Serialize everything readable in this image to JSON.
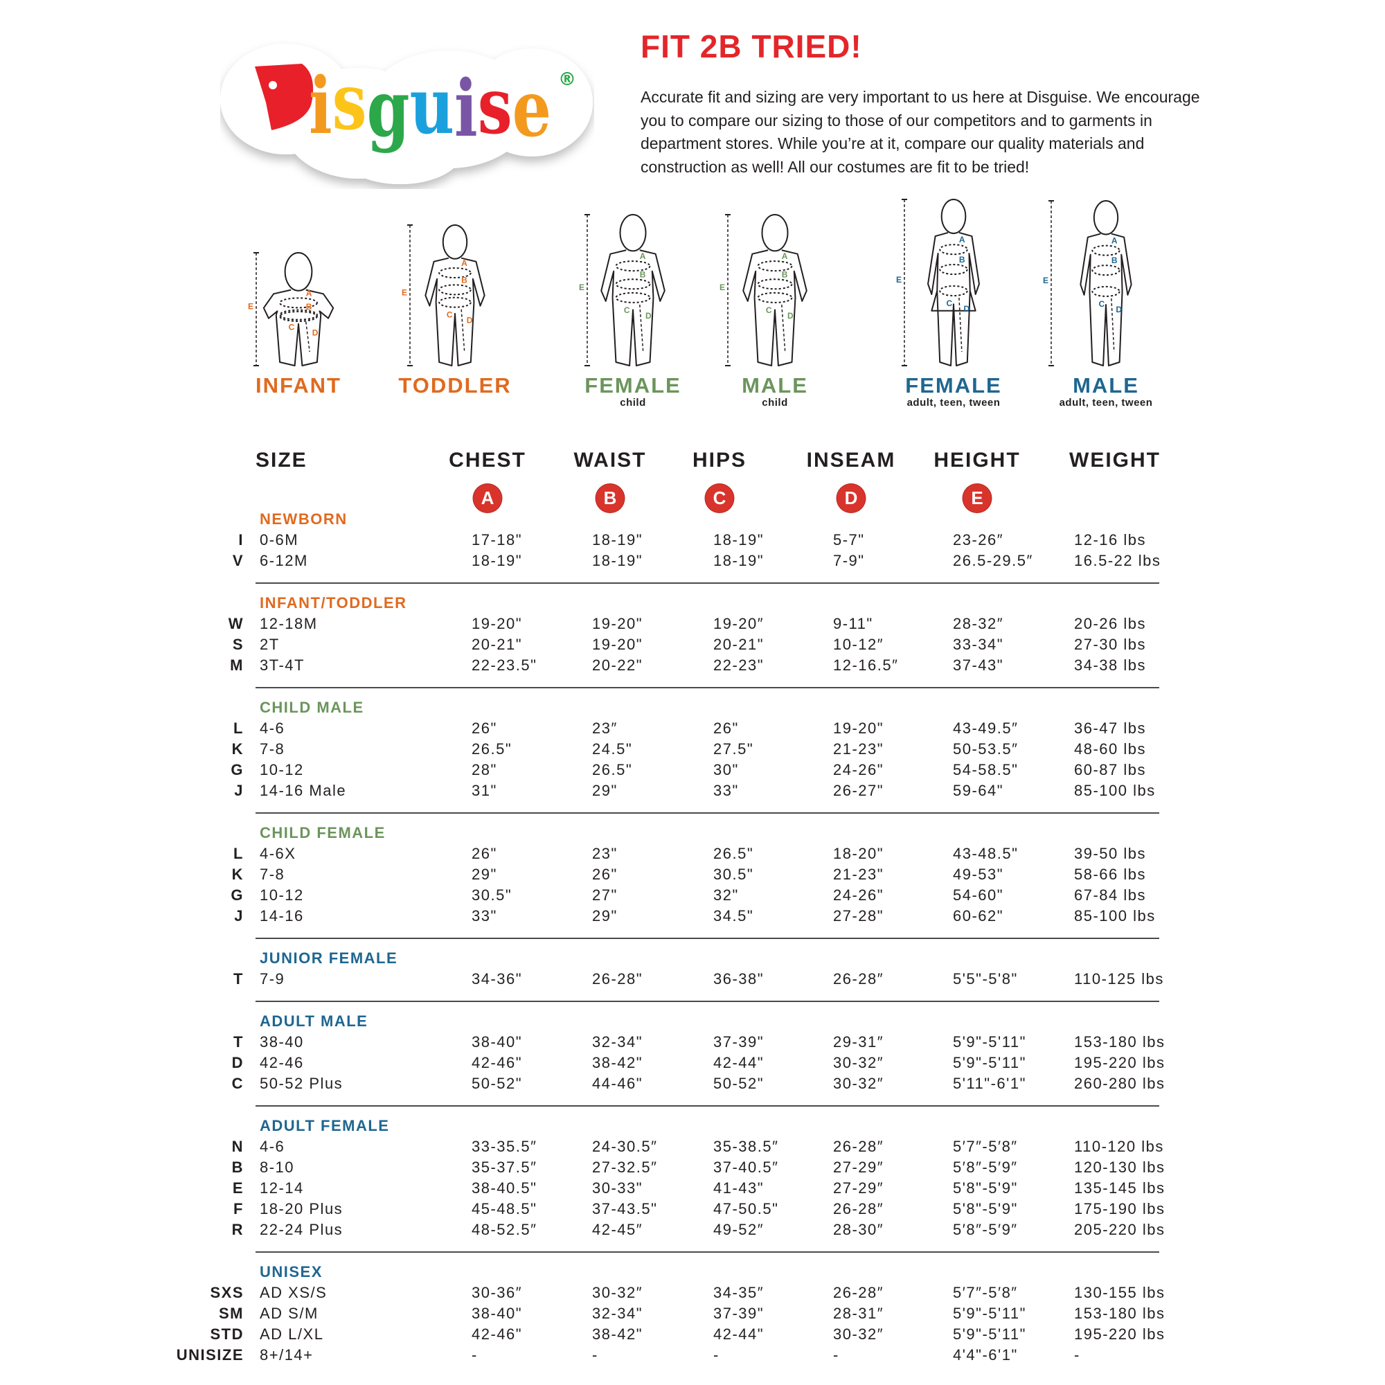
{
  "logo": {
    "text": "Disguise",
    "registered": "®",
    "letter_colors": [
      "#e8202a",
      "#f39a1e",
      "#fcc419",
      "#2ca84a",
      "#1aa0dc",
      "#7a55a5",
      "#e8202a",
      "#f39a1e"
    ]
  },
  "header": {
    "title": "FIT 2B TRIED!",
    "intro": "Accurate fit and sizing are very important to us here at Disguise. We encourage you to compare our sizing to those of our competitors and to garments in department stores. While you’re at it, compare our quality materials and construction as well! All our costumes are fit to be tried!"
  },
  "colors": {
    "orange": "#e06a1f",
    "green": "#6b955c",
    "blue": "#1f6691",
    "red": "#d8342c",
    "title_red": "#e3262a"
  },
  "figures": [
    {
      "label": "INFANT",
      "sub": "",
      "color": "#e06a1f"
    },
    {
      "label": "TODDLER",
      "sub": "",
      "color": "#e06a1f"
    },
    {
      "label": "FEMALE",
      "sub": "child",
      "color": "#6b955c"
    },
    {
      "label": "MALE",
      "sub": "child",
      "color": "#6b955c"
    },
    {
      "label": "FEMALE",
      "sub": "adult, teen, tween",
      "color": "#1f6691"
    },
    {
      "label": "MALE",
      "sub": "adult, teen, tween",
      "color": "#1f6691"
    }
  ],
  "figure_markers": [
    "A",
    "B",
    "C",
    "D",
    "E"
  ],
  "columns": [
    {
      "label": "SIZE",
      "marker": ""
    },
    {
      "label": "CHEST",
      "marker": "A"
    },
    {
      "label": "WAIST",
      "marker": "B"
    },
    {
      "label": "HIPS",
      "marker": "C"
    },
    {
      "label": "INSEAM",
      "marker": "D"
    },
    {
      "label": "HEIGHT",
      "marker": "E"
    },
    {
      "label": "WEIGHT",
      "marker": ""
    }
  ],
  "sections": [
    {
      "title": "NEWBORN",
      "color": "#e06a1f",
      "rows": [
        [
          "I",
          "0-6M",
          "17-18\"",
          "18-19\"",
          "18-19\"",
          "5-7\"",
          "23-26″",
          "12-16 lbs"
        ],
        [
          "V",
          "6-12M",
          "18-19\"",
          "18-19\"",
          "18-19\"",
          "7-9\"",
          "26.5-29.5″",
          "16.5-22 lbs"
        ]
      ]
    },
    {
      "title": "INFANT/TODDLER",
      "color": "#e06a1f",
      "rows": [
        [
          "W",
          "12-18M",
          "19-20\"",
          "19-20\"",
          "19-20″",
          "9-11\"",
          "28-32″",
          "20-26 lbs"
        ],
        [
          "S",
          "2T",
          "20-21\"",
          "19-20\"",
          "20-21\"",
          "10-12″",
          "33-34\"",
          "27-30 lbs"
        ],
        [
          "M",
          "3T-4T",
          "22-23.5\"",
          "20-22\"",
          "22-23\"",
          "12-16.5″",
          "37-43\"",
          "34-38 lbs"
        ]
      ]
    },
    {
      "title": "CHILD MALE",
      "color": "#6b955c",
      "rows": [
        [
          "L",
          "4-6",
          "26\"",
          "23″",
          "26\"",
          "19-20\"",
          "43-49.5″",
          "36-47 lbs"
        ],
        [
          "K",
          "7-8",
          "26.5\"",
          "24.5\"",
          "27.5\"",
          "21-23\"",
          "50-53.5″",
          "48-60 lbs"
        ],
        [
          "G",
          "10-12",
          "28\"",
          "26.5\"",
          "30\"",
          "24-26\"",
          "54-58.5\"",
          "60-87 lbs"
        ],
        [
          "J",
          "14-16 Male",
          "31\"",
          "29\"",
          "33\"",
          "26-27\"",
          "59-64\"",
          "85-100 lbs"
        ]
      ]
    },
    {
      "title": "CHILD FEMALE",
      "color": "#6b955c",
      "rows": [
        [
          "L",
          "4-6X",
          "26\"",
          "23\"",
          "26.5\"",
          "18-20\"",
          "43-48.5\"",
          "39-50 lbs"
        ],
        [
          "K",
          "7-8",
          "29\"",
          "26\"",
          "30.5\"",
          "21-23\"",
          "49-53\"",
          "58-66 lbs"
        ],
        [
          "G",
          "10-12",
          "30.5\"",
          "27\"",
          "32\"",
          "24-26\"",
          "54-60\"",
          "67-84 lbs"
        ],
        [
          "J",
          "14-16",
          "33\"",
          "29\"",
          "34.5\"",
          "27-28\"",
          "60-62\"",
          "85-100 lbs"
        ]
      ]
    },
    {
      "title": "JUNIOR FEMALE",
      "color": "#1f6691",
      "rows": [
        [
          "T",
          "7-9",
          "34-36\"",
          "26-28\"",
          "36-38\"",
          "26-28″",
          "5'5\"-5'8\"",
          "110-125 lbs"
        ]
      ]
    },
    {
      "title": "ADULT MALE",
      "color": "#1f6691",
      "rows": [
        [
          "T",
          "38-40",
          "38-40\"",
          "32-34\"",
          "37-39\"",
          "29-31″",
          "5'9\"-5'11\"",
          "153-180 lbs"
        ],
        [
          "D",
          "42-46",
          "42-46\"",
          "38-42\"",
          "42-44\"",
          "30-32″",
          "5'9\"-5'11\"",
          "195-220 lbs"
        ],
        [
          "C",
          "50-52 Plus",
          "50-52\"",
          "44-46\"",
          "50-52\"",
          "30-32″",
          "5'11\"-6'1\"",
          "260-280 lbs"
        ]
      ]
    },
    {
      "title": "ADULT FEMALE",
      "color": "#1f6691",
      "rows": [
        [
          "N",
          "4-6",
          "33-35.5″",
          "24-30.5″",
          "35-38.5″",
          "26-28″",
          "5′7″-5′8″",
          "110-120 lbs"
        ],
        [
          "B",
          "8-10",
          "35-37.5″",
          "27-32.5″",
          "37-40.5″",
          "27-29″",
          "5′8″-5′9″",
          "120-130 lbs"
        ],
        [
          "E",
          "12-14",
          "38-40.5\"",
          "30-33\"",
          "41-43\"",
          "27-29″",
          "5'8\"-5'9\"",
          "135-145 lbs"
        ],
        [
          "F",
          "18-20 Plus",
          "45-48.5\"",
          "37-43.5\"",
          "47-50.5\"",
          "26-28″",
          "5'8\"-5'9\"",
          "175-190 lbs"
        ],
        [
          "R",
          "22-24 Plus",
          "48-52.5″",
          "42-45″",
          "49-52″",
          "28-30″",
          "5′8″-5′9″",
          "205-220 lbs"
        ]
      ]
    },
    {
      "title": "UNISEX",
      "color": "#1f6691",
      "rows": [
        [
          "SXS",
          "AD XS/S",
          "30-36″",
          "30-32″",
          "34-35″",
          "26-28″",
          "5′7″-5′8″",
          "130-155 lbs"
        ],
        [
          "SM",
          "AD S/M",
          "38-40\"",
          "32-34\"",
          "37-39\"",
          "28-31″",
          "5'9\"-5'11\"",
          "153-180 lbs"
        ],
        [
          "STD",
          "AD L/XL",
          "42-46\"",
          "38-42\"",
          "42-44\"",
          "30-32″",
          "5'9\"-5'11\"",
          "195-220 lbs"
        ],
        [
          "UNISIZE",
          "8+/14+",
          "-",
          "-",
          "-",
          "-",
          "4'4\"-6'1\"",
          "-"
        ]
      ]
    }
  ]
}
